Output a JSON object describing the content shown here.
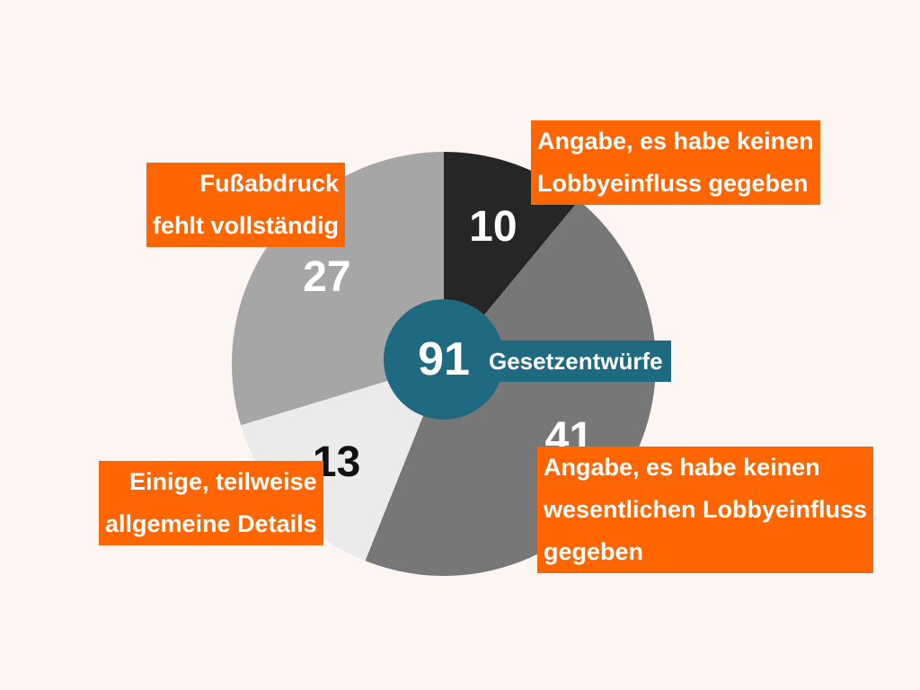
{
  "colors": {
    "background": "#fdf5f2",
    "slice_10": "#262626",
    "slice_41": "#777777",
    "slice_13": "#ebebeb",
    "slice_27": "#a6a6a6",
    "center": "#1f6a80",
    "callout": "#ff6500"
  },
  "chart_data": {
    "type": "pie",
    "total": 91,
    "total_label": "Gesetzentwürfe",
    "slices": [
      {
        "value": 10,
        "label": [
          "Angabe, es habe keinen",
          "Lobbyeinfluss gegeben"
        ],
        "color": "#262626",
        "text_color": "#ffffff"
      },
      {
        "value": 41,
        "label": [
          "Angabe, es habe keinen",
          "wesentlichen Lobbyeinfluss",
          "gegeben"
        ],
        "color": "#777777",
        "text_color": "#ffffff"
      },
      {
        "value": 13,
        "label": [
          "Einige, teilweise",
          "allgemeine Details"
        ],
        "color": "#ebebeb",
        "text_color": "#111111"
      },
      {
        "value": 27,
        "label": [
          "Fußabdruck",
          "fehlt vollständig"
        ],
        "color": "#a6a6a6",
        "text_color": "#ffffff"
      }
    ]
  }
}
